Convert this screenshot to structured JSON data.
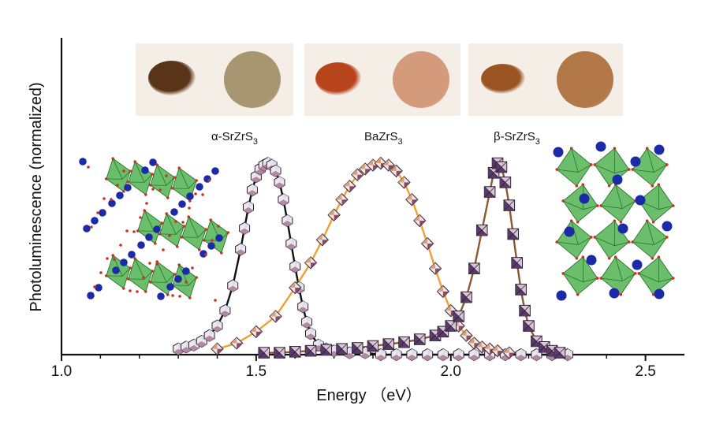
{
  "chart_data": {
    "type": "line",
    "xlabel": "Energy （eV）",
    "ylabel": "Photoluminescence (normalized)",
    "xlim": [
      1.0,
      2.6
    ],
    "ylim": [
      0,
      1.05
    ],
    "xticks": [
      "1.0",
      "1.5",
      "2.0",
      "2.5"
    ],
    "grid": false,
    "series": [
      {
        "name": "α-SrZrS3",
        "label_main": "α-SrZrS",
        "label_sub": "3",
        "line_color": "#111111",
        "marker": "hexagon",
        "x": [
          1.3,
          1.32,
          1.34,
          1.36,
          1.38,
          1.4,
          1.42,
          1.44,
          1.46,
          1.47,
          1.48,
          1.49,
          1.5,
          1.51,
          1.52,
          1.53,
          1.54,
          1.55,
          1.56,
          1.57,
          1.58,
          1.59,
          1.6,
          1.61,
          1.62,
          1.63,
          1.64,
          1.66,
          1.68,
          1.7,
          1.74,
          1.78,
          1.82,
          1.86,
          1.9,
          1.94,
          1.98,
          2.02,
          2.06,
          2.1,
          2.14,
          2.18,
          2.22,
          2.26,
          2.3
        ],
        "y": [
          0.03,
          0.04,
          0.05,
          0.07,
          0.1,
          0.15,
          0.23,
          0.36,
          0.55,
          0.66,
          0.77,
          0.86,
          0.93,
          0.97,
          0.99,
          1.0,
          0.99,
          0.96,
          0.9,
          0.81,
          0.7,
          0.58,
          0.46,
          0.35,
          0.25,
          0.17,
          0.11,
          0.05,
          0.03,
          0.02,
          0.01,
          0.01,
          0.0,
          0.0,
          0.0,
          0.0,
          0.0,
          0.0,
          0.0,
          0.0,
          0.0,
          0.0,
          0.0,
          0.0,
          0.0
        ]
      },
      {
        "name": "BaZrS3",
        "label_main": "BaZrS",
        "label_sub": "3",
        "line_color": "#f0a030",
        "marker": "diamond",
        "x": [
          1.4,
          1.45,
          1.5,
          1.55,
          1.6,
          1.64,
          1.67,
          1.7,
          1.72,
          1.74,
          1.76,
          1.78,
          1.8,
          1.82,
          1.84,
          1.86,
          1.88,
          1.9,
          1.92,
          1.94,
          1.96,
          1.98,
          2.0,
          2.02,
          2.04,
          2.06,
          2.08,
          2.1,
          2.12,
          2.15
        ],
        "y": [
          0.03,
          0.06,
          0.12,
          0.2,
          0.35,
          0.48,
          0.6,
          0.73,
          0.81,
          0.88,
          0.94,
          0.97,
          0.99,
          1.0,
          0.99,
          0.96,
          0.9,
          0.81,
          0.7,
          0.58,
          0.45,
          0.33,
          0.23,
          0.15,
          0.1,
          0.06,
          0.04,
          0.03,
          0.02,
          0.01
        ]
      },
      {
        "name": "β-SrZrS3",
        "label_main": "β-SrZrS",
        "label_sub": "3",
        "line_color": "#8a5a30",
        "marker": "square",
        "x": [
          1.52,
          1.56,
          1.6,
          1.64,
          1.68,
          1.72,
          1.76,
          1.8,
          1.84,
          1.88,
          1.92,
          1.96,
          1.98,
          2.0,
          2.02,
          2.04,
          2.06,
          2.08,
          2.1,
          2.11,
          2.12,
          2.13,
          2.14,
          2.15,
          2.16,
          2.17,
          2.18,
          2.19,
          2.2,
          2.22,
          2.24,
          2.26,
          2.28
        ],
        "y": [
          0.01,
          0.01,
          0.015,
          0.02,
          0.025,
          0.03,
          0.035,
          0.045,
          0.055,
          0.065,
          0.08,
          0.1,
          0.12,
          0.15,
          0.2,
          0.3,
          0.45,
          0.65,
          0.85,
          0.95,
          1.0,
          0.98,
          0.9,
          0.78,
          0.63,
          0.48,
          0.34,
          0.23,
          0.15,
          0.07,
          0.04,
          0.02,
          0.01
        ]
      }
    ]
  },
  "sample_photos": [
    {
      "series": "α-SrZrS3",
      "powder_color": "#5a3418",
      "pellet_color": "#a89670"
    },
    {
      "series": "BaZrS3",
      "powder_color": "#b8441c",
      "pellet_color": "#d49a7c"
    },
    {
      "series": "β-SrZrS3",
      "powder_color": "#9a5424",
      "pellet_color": "#b27848"
    }
  ],
  "crystal_colors": {
    "polyhedra": "#3aa83a",
    "cation": "#1a2aa8",
    "sulfur": "#c83222"
  }
}
